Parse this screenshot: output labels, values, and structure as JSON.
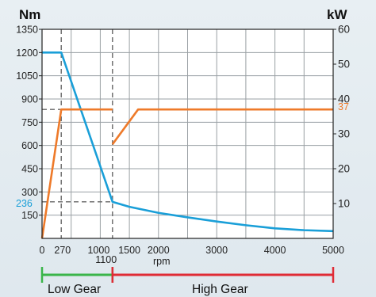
{
  "chart_data": {
    "type": "line",
    "xlabel": "rpm",
    "y_left_label": "Nm",
    "y_right_label": "kW",
    "xlim": [
      0,
      5000
    ],
    "ylim_left": [
      0,
      1350
    ],
    "ylim_right": [
      0,
      60
    ],
    "x_ticks": [
      "0",
      "270",
      "1000",
      "1500",
      "2000",
      "3000",
      "4000",
      "5000"
    ],
    "x_tick_values": [
      0,
      270,
      1000,
      1500,
      2000,
      3000,
      4000,
      5000
    ],
    "x_extra_tick": {
      "label": "1100",
      "value": 1100
    },
    "y_left_ticks": [
      150,
      300,
      450,
      600,
      750,
      900,
      1050,
      1200,
      1350
    ],
    "y_right_ticks": [
      10,
      20,
      30,
      40,
      50,
      60
    ],
    "grid": true,
    "series": [
      {
        "axis": "left",
        "color": "#1a9fd8",
        "segments": [
          [
            [
              0,
              1200
            ],
            [
              330,
              1200
            ],
            [
              1210,
              236
            ],
            [
              1500,
              204
            ],
            [
              2000,
              165
            ],
            [
              2500,
              136
            ],
            [
              3000,
              109
            ],
            [
              3500,
              85
            ],
            [
              4000,
              65
            ],
            [
              4500,
              53
            ],
            [
              5000,
              47
            ]
          ]
        ]
      },
      {
        "axis": "right",
        "color": "#ee7a2a",
        "segments": [
          [
            [
              0,
              0
            ],
            [
              330,
              37
            ],
            [
              1210,
              37
            ]
          ],
          [
            [
              1210,
              27
            ],
            [
              1650,
              37
            ],
            [
              5000,
              37
            ]
          ]
        ]
      }
    ],
    "reference_lines": [
      {
        "x": 330,
        "axis": "left"
      },
      {
        "x": 1210,
        "axis": "left"
      },
      {
        "y": 236,
        "axis": "left",
        "x_to": 1210
      },
      {
        "y": 37,
        "axis": "right",
        "x_to": 1210
      }
    ],
    "reference_labels": {
      "torque": "236",
      "power": "37"
    },
    "gear_ranges": [
      {
        "label": "Low Gear",
        "from": 0,
        "to": 1210,
        "color": "#3bb54a"
      },
      {
        "label": "High Gear",
        "from": 1210,
        "to": 5000,
        "color": "#e02b35"
      }
    ]
  }
}
